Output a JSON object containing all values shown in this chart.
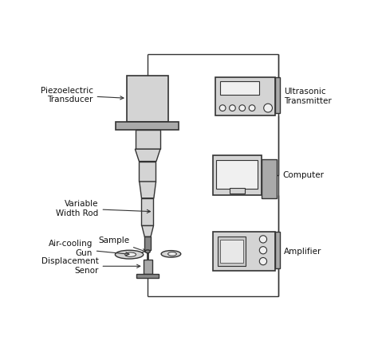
{
  "bg_color": "#ffffff",
  "line_color": "#333333",
  "fill_light": "#d4d4d4",
  "fill_mid": "#aaaaaa",
  "fill_dark": "#888888",
  "fill_white": "#f0f0f0",
  "labels": {
    "piezo": "Piezoelectric\nTransducer",
    "vwr": "Variable\nWidth Rod",
    "sample": "Sample",
    "aircool": "Air-cooling\nGun",
    "disp": "Displacement\nSenor",
    "ultrasonic": "Ultrasonic\nTransmitter",
    "computer": "Computer",
    "amplifier": "Amplifier"
  },
  "figsize": [
    4.74,
    4.37
  ],
  "dpi": 100
}
